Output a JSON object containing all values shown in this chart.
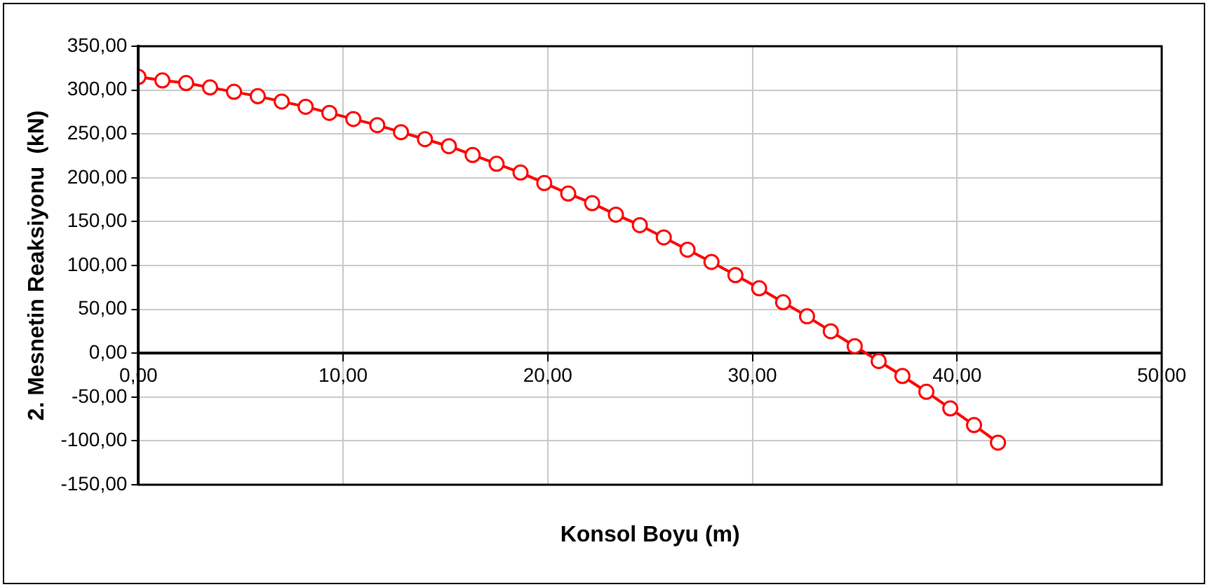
{
  "chart_data": {
    "type": "line",
    "xlabel": "Konsol Boyu (m)",
    "ylabel": "2. Mesnetin Reaksiyonu  (kN)",
    "x": [
      0,
      1.17,
      2.33,
      3.5,
      4.67,
      5.83,
      7,
      8.17,
      9.33,
      10.5,
      11.67,
      12.83,
      14,
      15.17,
      16.33,
      17.5,
      18.67,
      19.83,
      21,
      22.17,
      23.33,
      24.5,
      25.67,
      26.83,
      28,
      29.17,
      30.33,
      31.5,
      32.67,
      33.83,
      35,
      36.17,
      37.33,
      38.5,
      39.67,
      40.83,
      42
    ],
    "series": [
      {
        "color": "#ff0000",
        "values": [
          315,
          311,
          308,
          303,
          298,
          293,
          287,
          281,
          274,
          267,
          260,
          252,
          244,
          236,
          226,
          216,
          206,
          194,
          182,
          171,
          158,
          146,
          132,
          118,
          104,
          89,
          74,
          58,
          42,
          25,
          8,
          -9,
          -26,
          -44,
          -63,
          -82,
          -102
        ]
      }
    ],
    "xlim": [
      0,
      50
    ],
    "xticks": [
      {
        "value": 0,
        "label": "0,00"
      },
      {
        "value": 10,
        "label": "10,00"
      },
      {
        "value": 20,
        "label": "20,00"
      },
      {
        "value": 30,
        "label": "30,00"
      },
      {
        "value": 40,
        "label": "40,00"
      },
      {
        "value": 50,
        "label": "50,00"
      }
    ],
    "ylim": [
      -150,
      350
    ],
    "yticks": [
      {
        "value": -150,
        "label": "-150,00"
      },
      {
        "value": -100,
        "label": "-100,00"
      },
      {
        "value": -50,
        "label": "-50,00"
      },
      {
        "value": 0,
        "label": "0,00"
      },
      {
        "value": 50,
        "label": "50,00"
      },
      {
        "value": 100,
        "label": "100,00"
      },
      {
        "value": 150,
        "label": "150,00"
      },
      {
        "value": 200,
        "label": "200,00"
      },
      {
        "value": 250,
        "label": "250,00"
      },
      {
        "value": 300,
        "label": "300,00"
      },
      {
        "value": 350,
        "label": "350,00"
      }
    ],
    "grid": true,
    "legend": false,
    "marker": "circle",
    "line_style": "solid"
  }
}
